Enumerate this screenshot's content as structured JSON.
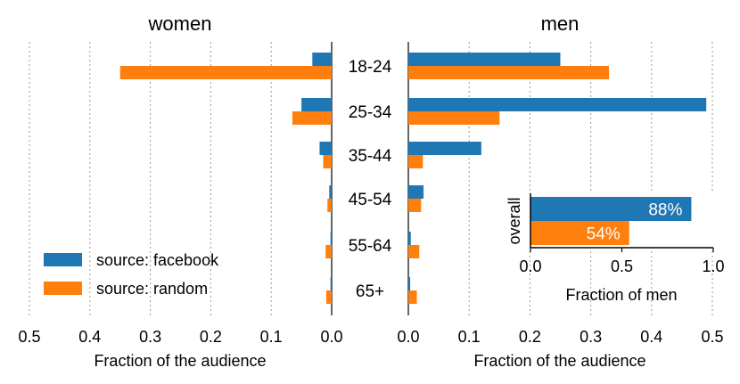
{
  "chart_data": [
    {
      "type": "bar",
      "orientation": "horizontal",
      "panel": "women",
      "title": "women",
      "xlabel": "Fraction of the audience",
      "xlim": [
        0.5,
        0.0
      ],
      "xticks": [
        0.5,
        0.4,
        0.3,
        0.2,
        0.1,
        0.0
      ],
      "xtick_labels": [
        "0.5",
        "0.4",
        "0.3",
        "0.2",
        "0.1",
        "0.0"
      ],
      "categories": [
        "18-24",
        "25-34",
        "35-44",
        "45-54",
        "55-64",
        "65+"
      ],
      "series": [
        {
          "name": "source: facebook",
          "color": "#1f77b4",
          "values": [
            0.032,
            0.05,
            0.02,
            0.004,
            0.002,
            0.002
          ]
        },
        {
          "name": "source: random",
          "color": "#ff7f0e",
          "values": [
            0.35,
            0.065,
            0.014,
            0.007,
            0.01,
            0.009
          ]
        }
      ],
      "grid": "x-dotted",
      "legend": "bottom-left"
    },
    {
      "type": "bar",
      "orientation": "horizontal",
      "panel": "men",
      "title": "men",
      "xlabel": "Fraction of the audience",
      "xlim": [
        0.0,
        0.5
      ],
      "xticks": [
        0.0,
        0.1,
        0.2,
        0.3,
        0.4,
        0.5
      ],
      "xtick_labels": [
        "0.0",
        "0.1",
        "0.2",
        "0.3",
        "0.4",
        "0.5"
      ],
      "categories": [
        "18-24",
        "25-34",
        "35-44",
        "45-54",
        "55-64",
        "65+"
      ],
      "series": [
        {
          "name": "source: facebook",
          "color": "#1f77b4",
          "values": [
            0.25,
            0.49,
            0.12,
            0.025,
            0.004,
            0.003
          ]
        },
        {
          "name": "source: random",
          "color": "#ff7f0e",
          "values": [
            0.33,
            0.15,
            0.024,
            0.021,
            0.018,
            0.014
          ]
        }
      ],
      "grid": "x-dotted"
    },
    {
      "type": "bar",
      "orientation": "horizontal",
      "panel": "inset",
      "ylabel": "overall",
      "xlabel": "Fraction of men",
      "xlim": [
        0.0,
        1.0
      ],
      "xticks": [
        0.0,
        0.5,
        1.0
      ],
      "xtick_labels": [
        "0.0",
        "0.5",
        "1.0"
      ],
      "series": [
        {
          "name": "source: facebook",
          "color": "#1f77b4",
          "value": 0.88,
          "label": "88%"
        },
        {
          "name": "source: random",
          "color": "#ff7f0e",
          "value": 0.54,
          "label": "54%"
        }
      ]
    }
  ],
  "legend": {
    "items": [
      {
        "label": "source: facebook",
        "color": "#1f77b4"
      },
      {
        "label": "source: random",
        "color": "#ff7f0e"
      }
    ]
  }
}
